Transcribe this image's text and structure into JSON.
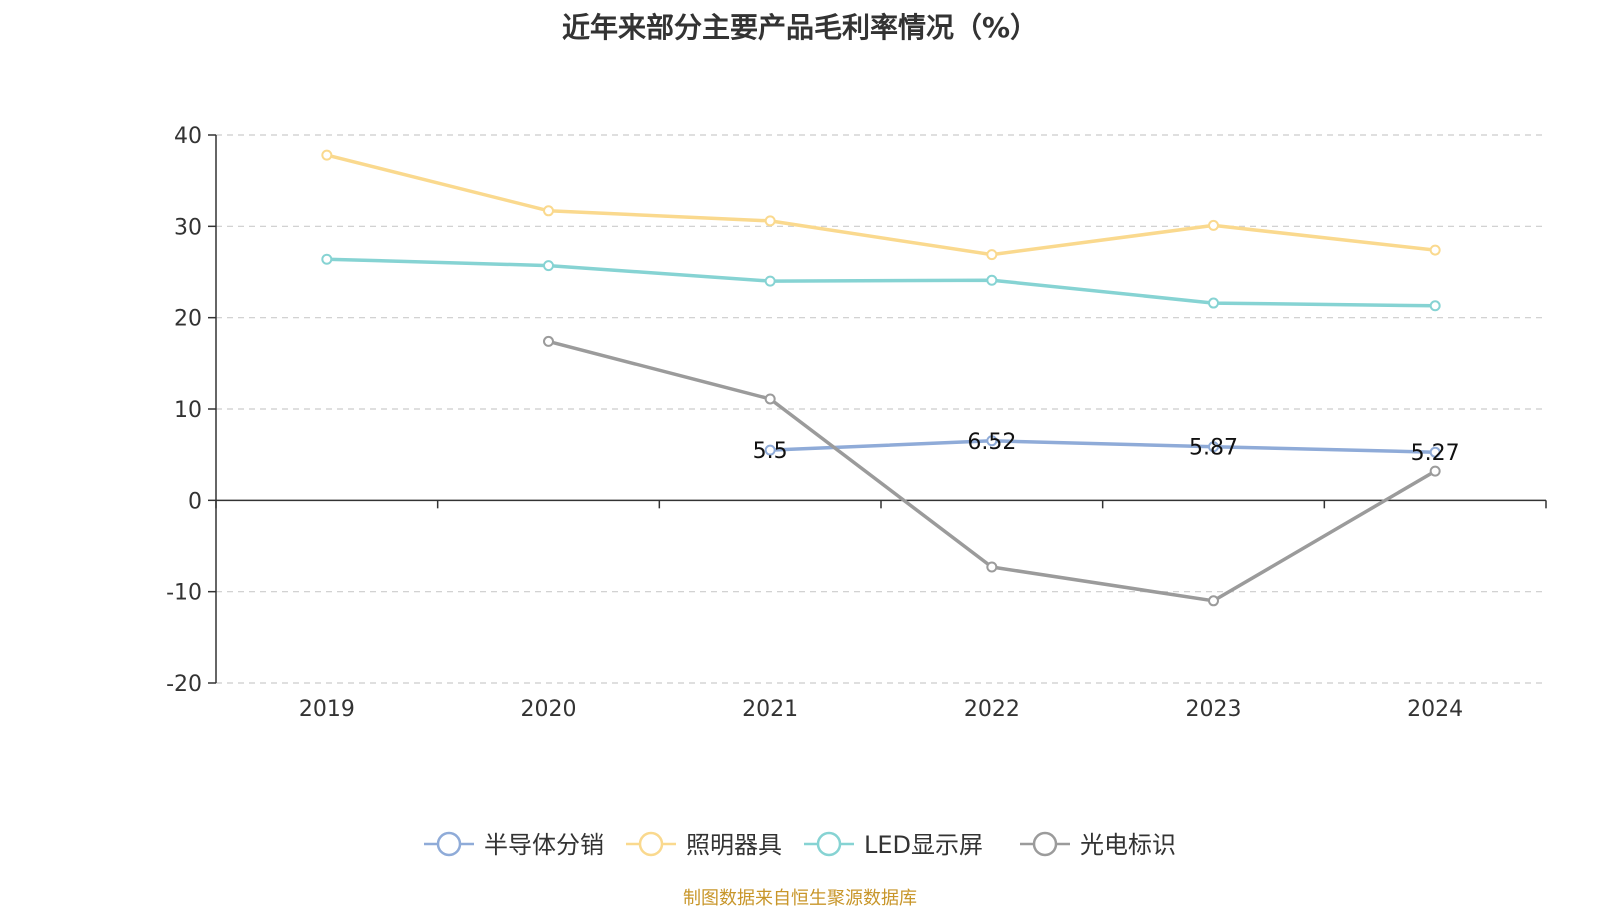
{
  "chart_data": {
    "type": "line",
    "title": "近年来部分主要产品毛利率情况（%）",
    "categories": [
      "2019",
      "2020",
      "2021",
      "2022",
      "2023",
      "2024"
    ],
    "ylim": [
      -20,
      40
    ],
    "yticks": [
      -20,
      -10,
      0,
      10,
      20,
      30,
      40
    ],
    "grid": true,
    "legend_position": "bottom",
    "series": [
      {
        "name": "半导体分销",
        "color": "#8fabd8",
        "values": [
          null,
          null,
          5.5,
          6.52,
          5.87,
          5.27
        ],
        "labels": [
          "",
          "",
          "5.5",
          "6.52",
          "5.87",
          "5.27"
        ]
      },
      {
        "name": "照明器具",
        "color": "#fad98e",
        "values": [
          37.8,
          31.7,
          30.6,
          26.9,
          30.1,
          27.4
        ]
      },
      {
        "name": "LED显示屏",
        "color": "#86d3d3",
        "values": [
          26.4,
          25.7,
          24.0,
          24.1,
          21.6,
          21.3
        ]
      },
      {
        "name": "光电标识",
        "color": "#9b9b9b",
        "values": [
          null,
          17.4,
          11.1,
          -7.3,
          -11.0,
          3.2
        ]
      }
    ]
  },
  "source": "制图数据来自恒生聚源数据库"
}
